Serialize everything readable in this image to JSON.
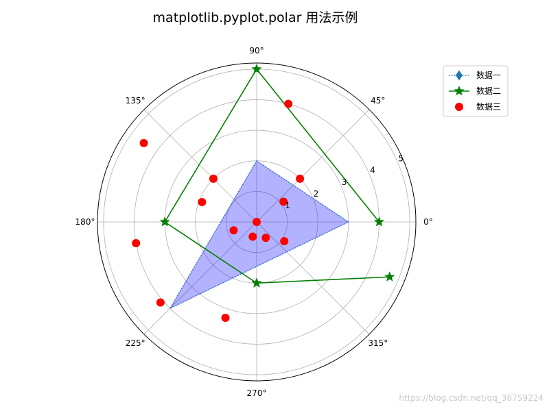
{
  "chart_data": {
    "type": "polar",
    "title": "matplotlib.pyplot.polar 用法示例",
    "theta_ticks": [
      "0°",
      "45°",
      "90°",
      "135°",
      "180°",
      "225°",
      "270°",
      "315°"
    ],
    "theta_tick_degrees": [
      0,
      45,
      90,
      135,
      180,
      225,
      270,
      315
    ],
    "r_ticks": [
      "1",
      "2",
      "3",
      "4",
      "5"
    ],
    "r_tick_values": [
      1,
      2,
      3,
      4,
      5
    ],
    "rlim": [
      0,
      5.2
    ],
    "grid": true,
    "legend_position": "top-right",
    "series": [
      {
        "name": "数据一",
        "marker": "diamond",
        "linestyle": "dotted",
        "color": "#1f77b4",
        "fill_color": "#0000ff",
        "filled": true,
        "theta_deg": [
          0,
          90,
          225,
          0
        ],
        "r": [
          3,
          2,
          4,
          3
        ]
      },
      {
        "name": "数据二",
        "marker": "star",
        "linestyle": "solid",
        "color": "#008000",
        "theta_deg": [
          0,
          90,
          180,
          270,
          337.5,
          270
        ],
        "r": [
          4,
          5,
          3,
          2,
          4.7,
          2
        ]
      },
      {
        "name": "数据三",
        "marker": "circle",
        "linestyle": "none",
        "color": "#ff0000",
        "theta_deg": [
          0,
          37,
          45,
          75,
          135,
          145,
          160,
          190,
          200,
          220,
          252,
          255,
          300,
          325
        ],
        "r": [
          0,
          1.1,
          2,
          4,
          2,
          4.5,
          1.9,
          4,
          0.8,
          4.1,
          3.3,
          0.5,
          0.6,
          1.1
        ]
      }
    ]
  },
  "watermark": "https://blog.csdn.net/qq_36759224"
}
